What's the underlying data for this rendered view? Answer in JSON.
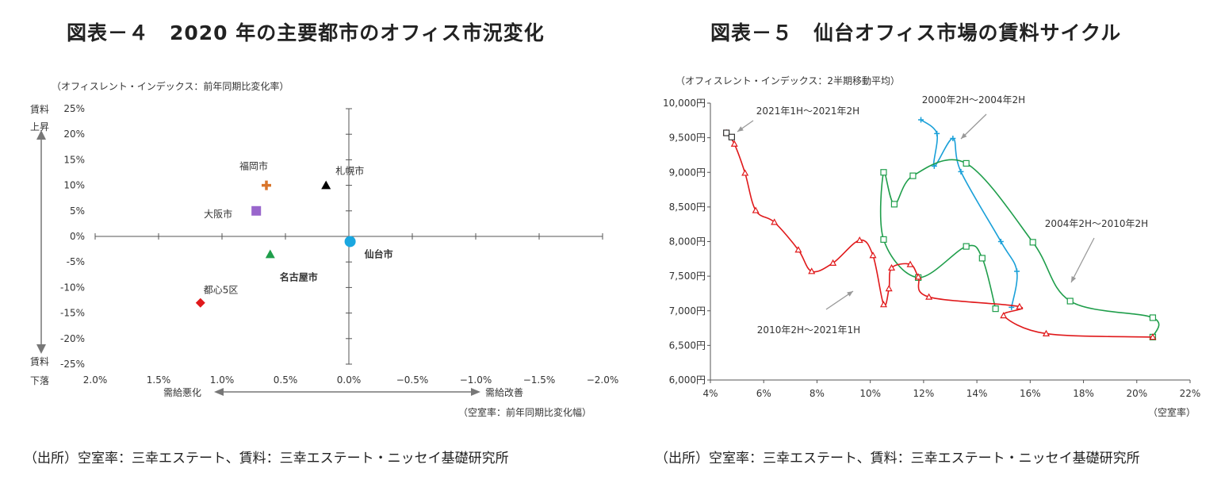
{
  "left_title": "図表－４　2020 年の主要都市のオフィス市況変化",
  "right_title": "図表－５　仙台オフィス市場の賃料サイクル",
  "left_source": "（出所）空室率：三幸エステート、賃料：三幸エステート・ニッセイ基礎研究所",
  "right_source": "（出所）空室率：三幸エステート、賃料：三幸エステート・ニッセイ基礎研究所",
  "chart_data": [
    {
      "type": "scatter",
      "ylabel": "（オフィスレント・インデックス：前年同期比変化率）",
      "xlabel": "（空室率：前年同期比変化幅）",
      "x_ticks": [
        "2.0%",
        "1.5%",
        "1.0%",
        "0.5%",
        "0.0%",
        "−0.5%",
        "−1.0%",
        "−1.5%",
        "−2.0%"
      ],
      "y_ticks": [
        "25%",
        "20%",
        "15%",
        "10%",
        "5%",
        "0%",
        "-5%",
        "-10%",
        "-15%",
        "-20%",
        "-25%"
      ],
      "xlim": [
        2.0,
        -2.0
      ],
      "ylim": [
        -25,
        25
      ],
      "y_up_label_1": "賃料",
      "y_up_label_2": "上昇",
      "y_down_label_1": "賃料",
      "y_down_label_2": "下落",
      "x_left_label": "需給悪化",
      "x_right_label": "需給改善",
      "points": [
        {
          "name": "札幌市",
          "x": 0.18,
          "y": 10,
          "color": "#000000",
          "marker": "triangle"
        },
        {
          "name": "福岡市",
          "x": 0.65,
          "y": 10,
          "color": "#d9752b",
          "marker": "plus"
        },
        {
          "name": "大阪市",
          "x": 0.73,
          "y": 5,
          "color": "#9966cc",
          "marker": "square"
        },
        {
          "name": "仙台市",
          "x": -0.01,
          "y": -1,
          "color": "#1aa7e0",
          "marker": "circle"
        },
        {
          "name": "名古屋市",
          "x": 0.62,
          "y": -3.5,
          "color": "#1f9e4b",
          "marker": "triangle"
        },
        {
          "name": "都心5区",
          "x": 1.17,
          "y": -13,
          "color": "#e0191b",
          "marker": "diamond"
        }
      ]
    },
    {
      "type": "line",
      "ylabel": "（オフィスレント・インデックス：2半期移動平均）",
      "xlabel": "（空室率）",
      "x_ticks": [
        "4%",
        "6%",
        "8%",
        "10%",
        "12%",
        "14%",
        "16%",
        "18%",
        "20%",
        "22%"
      ],
      "y_ticks": [
        "10,000円",
        "9,500円",
        "9,000円",
        "8,500円",
        "8,000円",
        "7,500円",
        "7,000円",
        "6,500円",
        "6,000円"
      ],
      "xlim": [
        4,
        22
      ],
      "ylim": [
        6000,
        10000
      ],
      "series": [
        {
          "name": "2000年2H～2004年2H",
          "color": "#1aa0d8",
          "marker": "plus",
          "points": [
            [
              11.9,
              9760
            ],
            [
              12.5,
              9560
            ],
            [
              12.4,
              9090
            ],
            [
              13.1,
              9490
            ],
            [
              13.4,
              9010
            ],
            [
              14.9,
              8000
            ],
            [
              15.5,
              7570
            ],
            [
              15.3,
              7050
            ]
          ]
        },
        {
          "name": "2004年2H～2010年2H",
          "color": "#1f9e4b",
          "marker": "square",
          "points": [
            [
              14.7,
              7030
            ],
            [
              14.2,
              7760
            ],
            [
              13.6,
              7930
            ],
            [
              11.8,
              7480
            ],
            [
              10.5,
              8030
            ],
            [
              10.5,
              9000
            ],
            [
              10.9,
              8540
            ],
            [
              11.6,
              8950
            ],
            [
              13.6,
              9130
            ],
            [
              16.1,
              7990
            ],
            [
              17.5,
              7140
            ],
            [
              20.6,
              6900
            ],
            [
              20.6,
              6620
            ]
          ]
        },
        {
          "name": "2010年2H～2021年1H",
          "color": "#e0191b",
          "marker": "triangle",
          "points": [
            [
              20.6,
              6620
            ],
            [
              16.6,
              6670
            ],
            [
              15.0,
              6930
            ],
            [
              15.6,
              7060
            ],
            [
              12.2,
              7200
            ],
            [
              11.8,
              7490
            ],
            [
              11.5,
              7670
            ],
            [
              10.8,
              7620
            ],
            [
              10.7,
              7320
            ],
            [
              10.5,
              7090
            ],
            [
              10.1,
              7800
            ],
            [
              9.6,
              8020
            ],
            [
              8.6,
              7690
            ],
            [
              7.8,
              7570
            ],
            [
              7.3,
              7880
            ],
            [
              6.4,
              8280
            ],
            [
              5.7,
              8450
            ],
            [
              5.3,
              8990
            ],
            [
              4.9,
              9410
            ],
            [
              4.6,
              9570
            ]
          ]
        },
        {
          "name": "2021年1H～2021年2H",
          "color": "#333333",
          "marker": "square",
          "points": [
            [
              4.6,
              9570
            ],
            [
              4.8,
              9510
            ]
          ]
        }
      ]
    }
  ]
}
